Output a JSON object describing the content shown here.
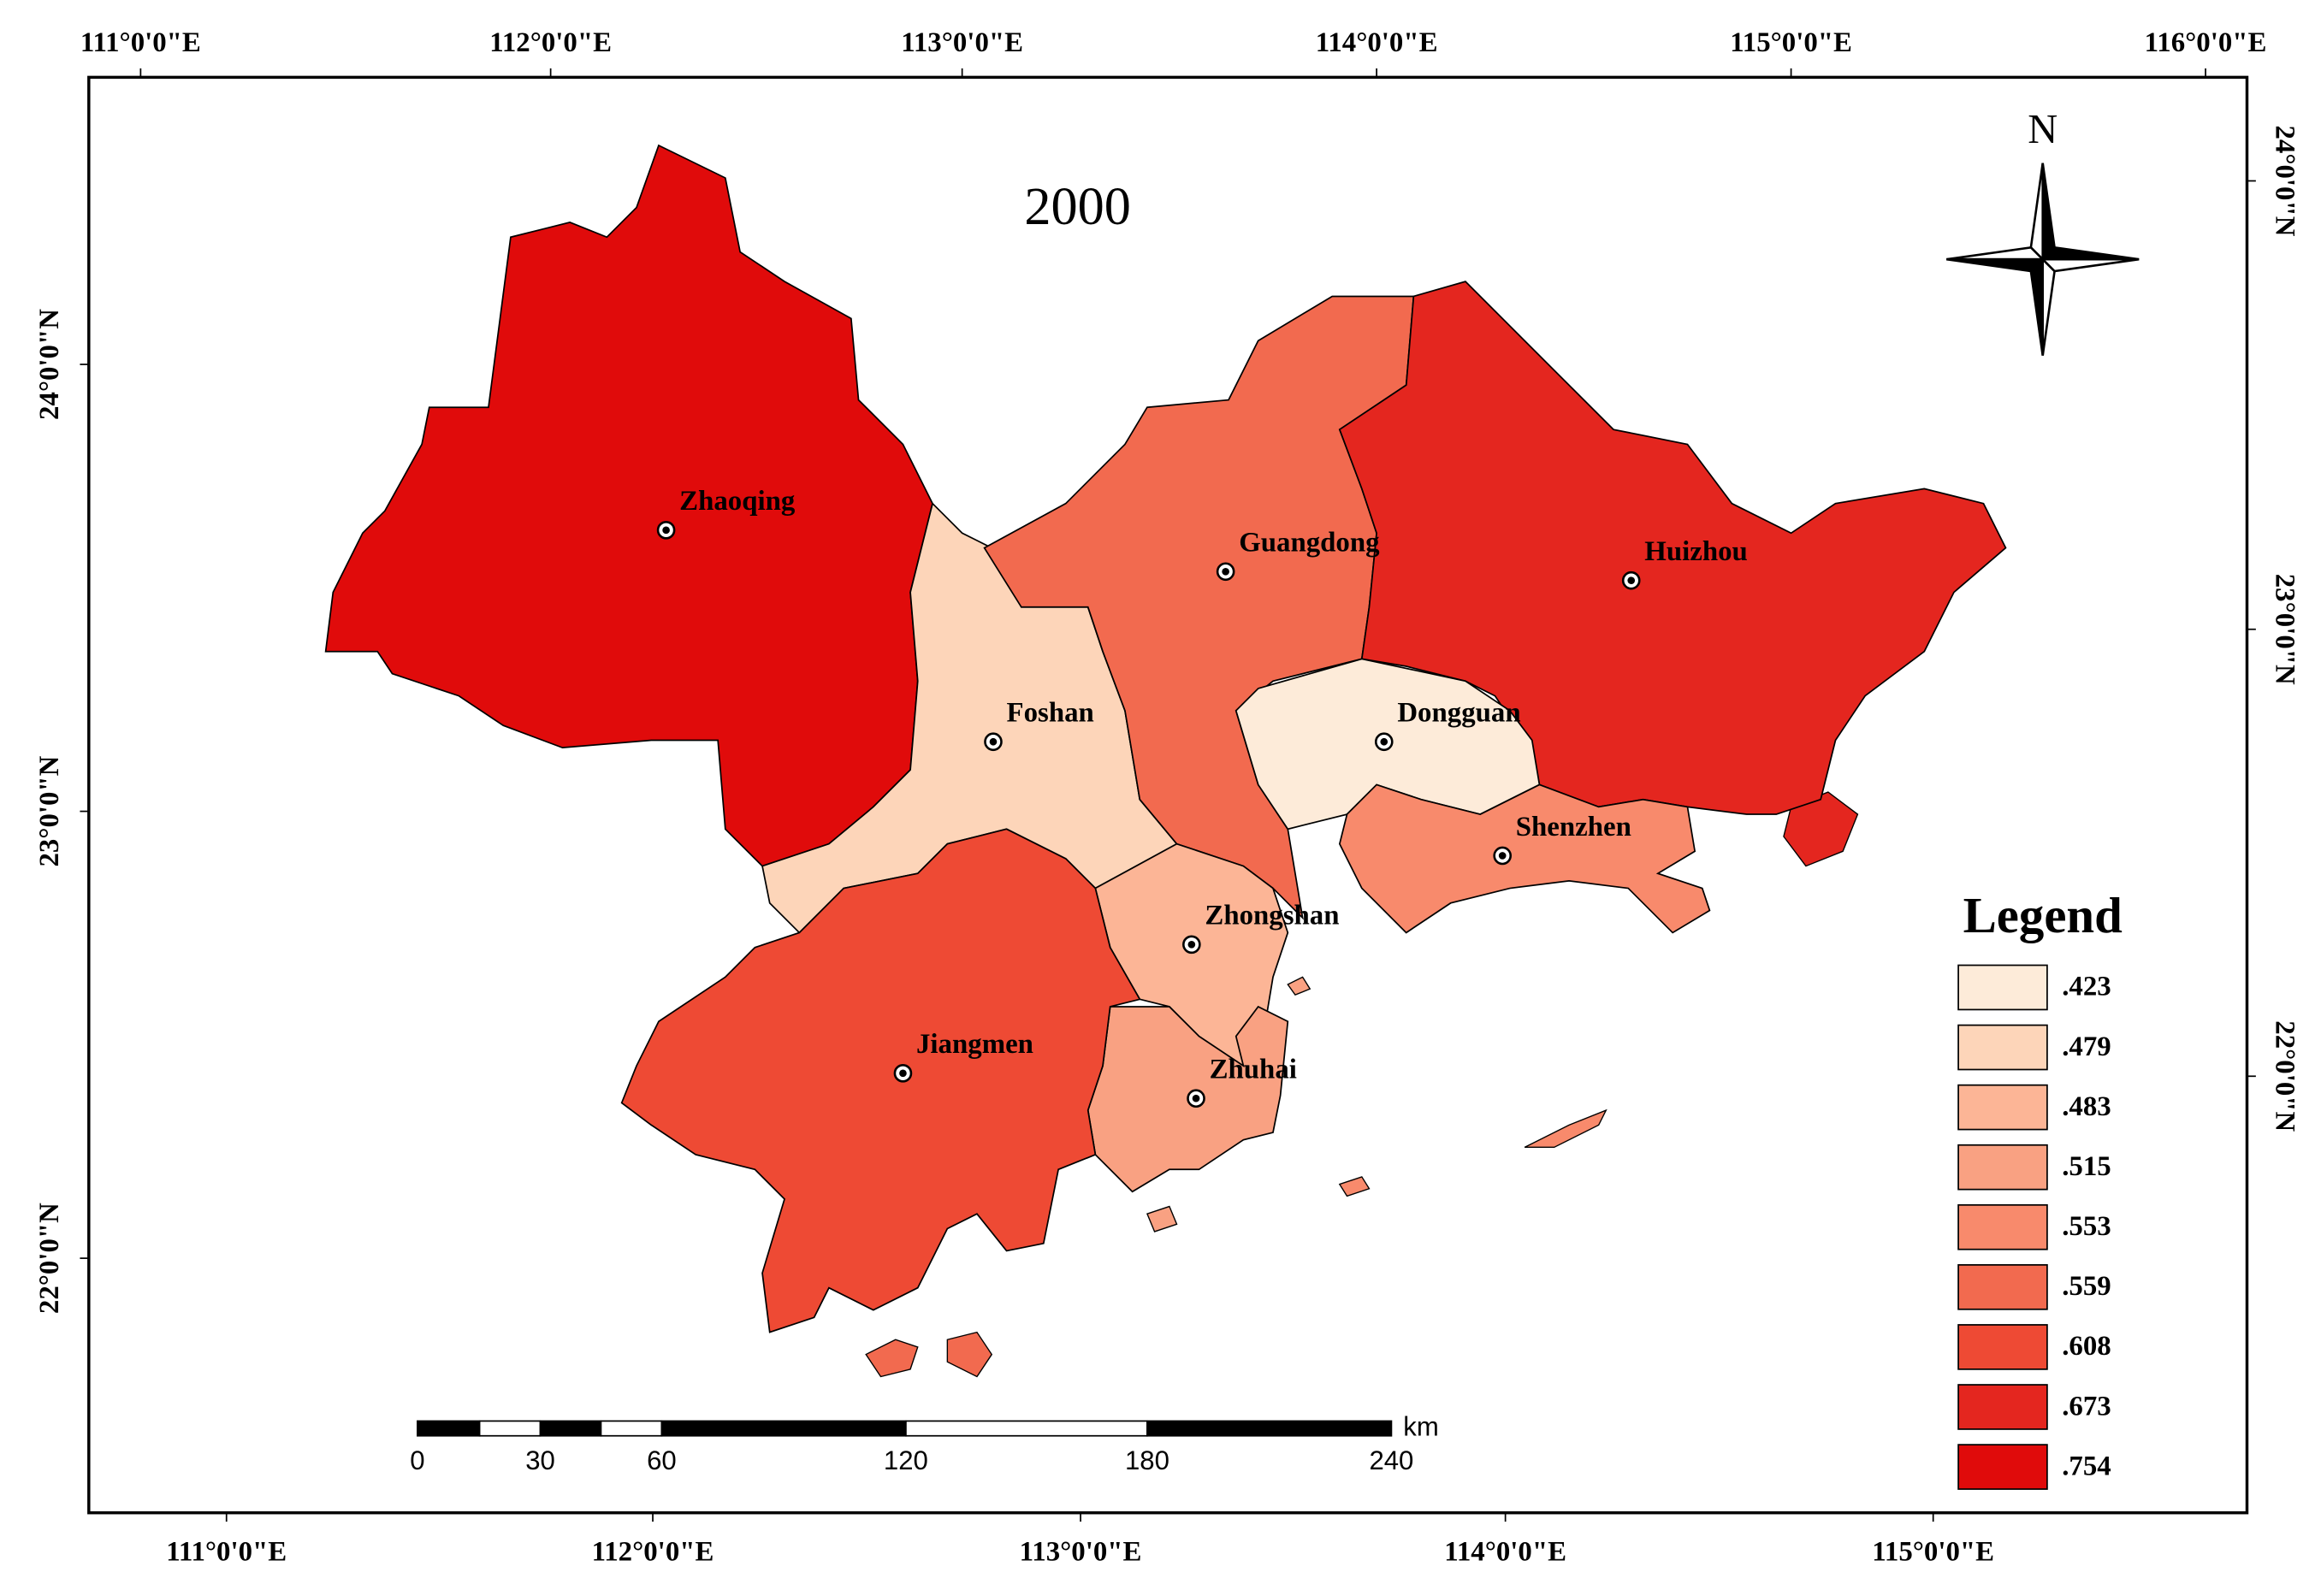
{
  "map": {
    "title": "2000",
    "north": "N",
    "top_ticks": [
      "111°0'0\"E",
      "112°0'0\"E",
      "113°0'0\"E",
      "114°0'0\"E",
      "115°0'0\"E",
      "116°0'0\"E"
    ],
    "bottom_ticks": [
      "111°0'0\"E",
      "112°0'0\"E",
      "113°0'0\"E",
      "114°0'0\"E",
      "115°0'0\"E"
    ],
    "left_ticks": [
      "24°0'0\"N",
      "23°0'0\"N",
      "22°0'0\"N"
    ],
    "right_ticks": [
      "24°0'0\"N",
      "23°0'0\"N",
      "22°0'0\"N"
    ],
    "regions": [
      {
        "name": "Zhaoqing",
        "color": "#e00b0b"
      },
      {
        "name": "Foshan",
        "color": "#fdd5b9"
      },
      {
        "name": "Guangdong",
        "color": "#f26a4f"
      },
      {
        "name": "Huizhou",
        "color": "#e4261f"
      },
      {
        "name": "Dongguan",
        "color": "#fdebd9"
      },
      {
        "name": "Shenzhen",
        "color": "#f88a6c"
      },
      {
        "name": "Zhongshan",
        "color": "#fcb596"
      },
      {
        "name": "Zhuhai",
        "color": "#f9a182"
      },
      {
        "name": "Jiangmen",
        "color": "#ee4a34"
      }
    ],
    "legend": {
      "title": "Legend",
      "items": [
        {
          "label": ".423",
          "color": "#fdebd9"
        },
        {
          "label": ".479",
          "color": "#fdd5b9"
        },
        {
          "label": ".483",
          "color": "#fcb596"
        },
        {
          "label": ".515",
          "color": "#f9a182"
        },
        {
          "label": ".553",
          "color": "#f88a6c"
        },
        {
          "label": ".559",
          "color": "#f26a4f"
        },
        {
          "label": ".608",
          "color": "#ee4a34"
        },
        {
          "label": ".673",
          "color": "#e4261f"
        },
        {
          "label": ".754",
          "color": "#e00b0b"
        }
      ]
    },
    "scale_bar": {
      "unit": "km",
      "labels": [
        "0",
        "30",
        "60",
        "120",
        "180",
        "240"
      ]
    }
  }
}
